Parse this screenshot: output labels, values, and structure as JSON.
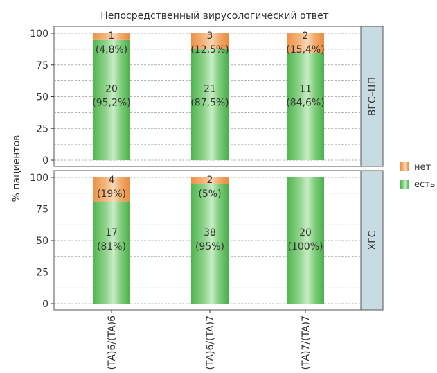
{
  "chart_data": {
    "type": "bar",
    "stacked": true,
    "faceted": true,
    "title": "Непосредственный вирусологический ответ",
    "ylabel": "% пациентов",
    "xlabel": "",
    "ylim": [
      0,
      100
    ],
    "y_ticks": [
      "0",
      "25",
      "50",
      "75",
      "100"
    ],
    "grid": true,
    "categories": [
      "(TA)6/(TA)6",
      "(TA)6/(TA)7",
      "(TA)7/(TA)7"
    ],
    "legend": {
      "placement": "right",
      "items": [
        {
          "name": "нет",
          "color": "#f0a45c"
        },
        {
          "name": "есть",
          "color": "#6cc46a"
        }
      ]
    },
    "panels": [
      {
        "strip_label": "ВГС–ЦП",
        "series": [
          {
            "name": "есть",
            "values": [
              95.2,
              87.5,
              84.6
            ],
            "labels": [
              [
                "20",
                "(95,2%)"
              ],
              [
                "21",
                "(87,5%)"
              ],
              [
                "11",
                "(84,6%)"
              ]
            ]
          },
          {
            "name": "нет",
            "values": [
              4.8,
              12.5,
              15.4
            ],
            "labels": [
              [
                "1",
                "(4,8%)"
              ],
              [
                "3",
                "(12,5%)"
              ],
              [
                "2",
                "(15,4%)"
              ]
            ]
          }
        ]
      },
      {
        "strip_label": "ХГС",
        "series": [
          {
            "name": "есть",
            "values": [
              81,
              95,
              100
            ],
            "labels": [
              [
                "17",
                "(81%)"
              ],
              [
                "38",
                "(95%)"
              ],
              [
                "20",
                "(100%)"
              ]
            ]
          },
          {
            "name": "нет",
            "values": [
              19,
              5,
              0
            ],
            "labels": [
              [
                "4",
                "(19%)"
              ],
              [
                "2",
                "(5%)"
              ],
              [
                "",
                ""
              ]
            ]
          }
        ]
      }
    ]
  }
}
